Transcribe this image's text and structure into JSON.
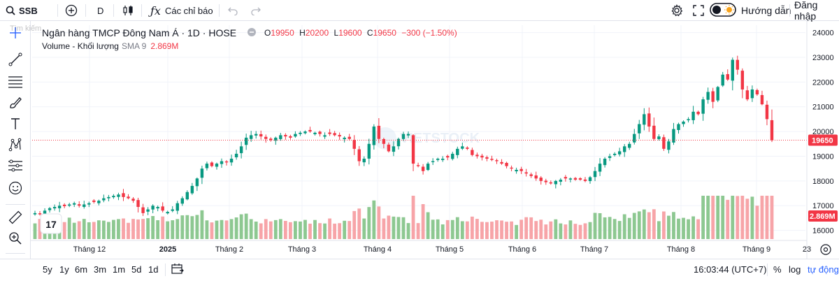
{
  "topbar": {
    "symbol": "SSB",
    "interval": "D",
    "indicators_label": "Các chỉ báo",
    "guide_label": "Hướng dẫn",
    "signup_label": "Đăng nhập"
  },
  "legend": {
    "title": "Ngân hàng TMCP Đông Nam Á · 1D · HOSE",
    "open_label": "O",
    "open": "19950",
    "high_label": "H",
    "high": "20200",
    "low_label": "L",
    "low": "19600",
    "close_label": "C",
    "close": "19650",
    "change": "−300 (−1.50%)",
    "volume_label": "Volume - Khối lượng",
    "sma_label": "SMA 9",
    "sma_value": "2.869M"
  },
  "search_ghost_text": "Tìm kiếm",
  "watermark": "VIETSTOCK",
  "colors": {
    "up": "#089981",
    "down": "#f23645",
    "vol_up": "#8dc891",
    "vol_down": "#f7a4a8"
  },
  "bottombar": {
    "ranges": [
      "5y",
      "1y",
      "6m",
      "3m",
      "1m",
      "5d",
      "1d"
    ],
    "clock": "16:03:44 (UTC+7)",
    "percent_label": "%",
    "log_label": "log",
    "auto_label": "tự động"
  },
  "chart_data": {
    "type": "candlestick",
    "price_axis_ticks": [
      24000,
      23000,
      22000,
      21000,
      20000,
      19000,
      18000,
      17000,
      16000
    ],
    "last_price_label": "19650",
    "last_volume_label": "2.869M",
    "x_axis_labels": [
      "Tháng 12",
      "2025",
      "Tháng 2",
      "Tháng 3",
      "Tháng 4",
      "Tháng 5",
      "Tháng 6",
      "Tháng 7",
      "Tháng 8",
      "Tháng 9",
      "23"
    ],
    "grid": true,
    "approx_closes": [
      16700,
      16650,
      16800,
      16900,
      16950,
      17000,
      16980,
      17050,
      17100,
      17000,
      17050,
      17100,
      17150,
      17200,
      17300,
      17350,
      17400,
      17450,
      17350,
      17300,
      17200,
      16950,
      16700,
      16850,
      17000,
      16950,
      16800,
      16750,
      16850,
      17100,
      17300,
      17550,
      17800,
      18100,
      18500,
      18700,
      18600,
      18700,
      18800,
      18750,
      18900,
      19100,
      19400,
      19750,
      19850,
      19900,
      19800,
      19700,
      19650,
      19750,
      19850,
      19800,
      19750,
      19900,
      19950,
      20000,
      20000,
      19950,
      19900,
      19850,
      19900,
      19850,
      19800,
      19750,
      19700,
      19300,
      18800,
      18900,
      19500,
      20200,
      19700,
      19500,
      19200,
      19400,
      19700,
      19900,
      19900,
      18700,
      18600,
      18400,
      18700,
      18800,
      18900,
      18900,
      18950,
      19100,
      19300,
      19400,
      19300,
      19050,
      19000,
      18950,
      18900,
      18850,
      18800,
      18700,
      18600,
      18500,
      18450,
      18400,
      18300,
      18200,
      18100,
      18000,
      17950,
      17900,
      18000,
      18050,
      18100,
      18100,
      18050,
      18050,
      18000,
      18150,
      18400,
      18700,
      18900,
      19000,
      19100,
      19200,
      19400,
      19500,
      19900,
      20300,
      20700,
      20200,
      19700,
      19800,
      19300,
      19600,
      20100,
      20300,
      20400,
      20500,
      20800,
      20700,
      21300,
      21600,
      21200,
      21800,
      22300,
      22100,
      22900,
      22500,
      21700,
      21300,
      21700,
      21500,
      21100,
      20500,
      19650
    ]
  }
}
